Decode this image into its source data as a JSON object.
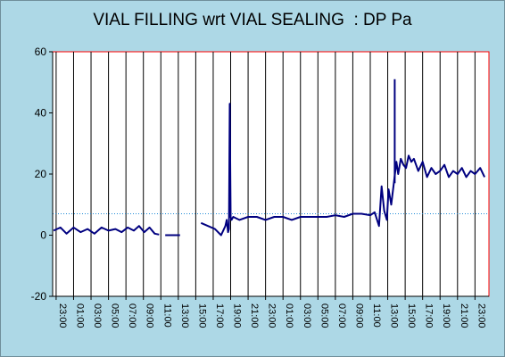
{
  "chart_data": {
    "type": "line",
    "title": "VIAL FILLING wrt VIAL SEALING  : DP Pa",
    "xlabel": "",
    "ylabel": "",
    "ylim": [
      -20,
      60
    ],
    "y_ticks": [
      "60",
      "40",
      "20",
      "0",
      "-20"
    ],
    "y_tick_values": [
      60,
      40,
      20,
      0,
      -20
    ],
    "x_ticks": [
      "23:00",
      "01:00",
      "03:00",
      "05:00",
      "07:00",
      "09:00",
      "11:00",
      "13:00",
      "15:00",
      "17:00",
      "19:00",
      "21:00",
      "23:00",
      "01:00",
      "03:00",
      "05:00",
      "07:00",
      "09:00",
      "11:00",
      "13:00",
      "15:00",
      "17:00",
      "19:00",
      "21:00",
      "23:00"
    ],
    "x_tick_hours": [
      0,
      2,
      4,
      6,
      8,
      10,
      12,
      14,
      16,
      18,
      20,
      22,
      24,
      26,
      28,
      30,
      32,
      34,
      36,
      38,
      40,
      42,
      44,
      46,
      48
    ],
    "xlim_hours": [
      -0.4,
      49.6
    ],
    "vertical_grid": true,
    "reference_line": 7,
    "series": [
      {
        "color": "#000080",
        "x_hours": [
          -0.3,
          0.5,
          1.2,
          2.0,
          2.8,
          3.6,
          4.4,
          5.2,
          6.0,
          6.8,
          7.5,
          8.2,
          8.9,
          9.5,
          10.1,
          10.7,
          11.3,
          11.8,
          12.5,
          13.0,
          13.7,
          14.2,
          16.6,
          18.2,
          18.9,
          19.4,
          19.55,
          19.7,
          19.8,
          19.9,
          20.0,
          20.1,
          20.3,
          21.0,
          22.0,
          23.0,
          24.0,
          25.0,
          26.0,
          27.0,
          28.0,
          29.0,
          30.0,
          31.0,
          32.0,
          33.0,
          34.0,
          35.0,
          36.0,
          36.5,
          37.0,
          37.3,
          37.6,
          37.9,
          38.1,
          38.4,
          38.7,
          39.0,
          39.2,
          39.5,
          39.8,
          40.1,
          40.4,
          40.7,
          41.0,
          41.5,
          42.0,
          42.5,
          43.0,
          43.5,
          44.0,
          44.5,
          45.0,
          45.5,
          46.0,
          46.5,
          47.0,
          47.5,
          48.0,
          48.6,
          49.1
        ],
        "y_values": [
          1.5,
          2.5,
          0.5,
          2.5,
          1,
          2,
          0.5,
          2.5,
          1.5,
          2,
          1,
          2.5,
          1.5,
          3,
          1,
          2.5,
          0.5,
          0.2,
          0,
          0,
          0,
          0,
          4,
          2,
          0,
          3,
          5,
          1,
          2,
          43,
          6,
          5,
          6,
          5,
          6,
          6,
          5,
          6,
          6,
          5,
          6,
          6,
          6,
          6,
          6.5,
          6,
          7,
          7,
          6.5,
          7.5,
          3,
          16,
          8,
          5,
          15,
          10,
          17,
          24,
          20,
          25,
          23,
          22,
          26,
          24,
          25,
          21,
          24,
          19,
          22,
          20,
          21,
          23,
          19,
          21,
          20,
          22,
          19,
          21,
          20,
          22,
          19
        ],
        "gaps_after_hours": [
          11.8,
          14.2
        ]
      },
      {
        "color": "#000080",
        "x_hours": [
          38.8,
          38.8
        ],
        "y_values": [
          17,
          51
        ]
      }
    ]
  }
}
